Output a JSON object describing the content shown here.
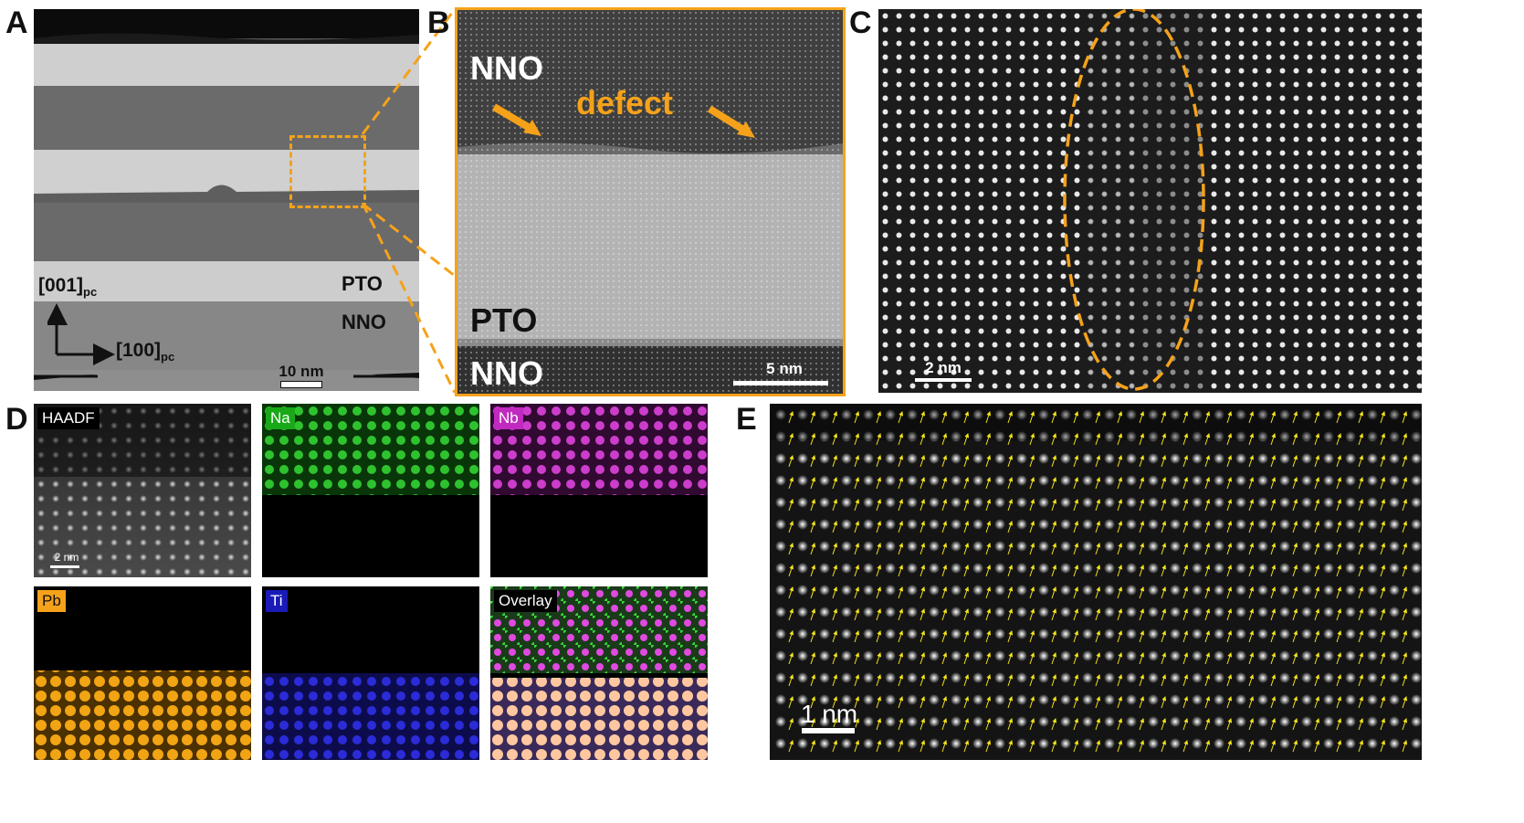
{
  "colors": {
    "accent_orange": "#f5a21a",
    "na_green": "#2fd12f",
    "nb_magenta": "#d43ad4",
    "pb_orange": "#f5a21a",
    "ti_blue": "#2b2bd8",
    "arrow_yellow": "#f2e21a"
  },
  "panels": {
    "a": {
      "letter": "A",
      "axis_vertical": "[001]",
      "axis_vertical_sub": "pc",
      "axis_horizontal": "[100]",
      "axis_horizontal_sub": "pc",
      "layer_pto": "PTO",
      "layer_nno": "NNO",
      "scalebar": "10 nm"
    },
    "b": {
      "letter": "B",
      "label_top": "NNO",
      "label_defect": "defect",
      "label_pto": "PTO",
      "label_bottom": "NNO",
      "scalebar": "5 nm"
    },
    "c": {
      "letter": "C",
      "scalebar": "2 nm"
    },
    "d": {
      "letter": "D",
      "tiles": [
        {
          "label": "HAADF",
          "icon": "haadf-map"
        },
        {
          "label": "Na",
          "icon": "na-map"
        },
        {
          "label": "Nb",
          "icon": "nb-map"
        },
        {
          "label": "Pb",
          "icon": "pb-map"
        },
        {
          "label": "Ti",
          "icon": "ti-map"
        },
        {
          "label": "Overlay",
          "icon": "overlay-map"
        }
      ],
      "scalebar": "2 nm"
    },
    "e": {
      "letter": "E",
      "scalebar": "1 nm"
    }
  }
}
